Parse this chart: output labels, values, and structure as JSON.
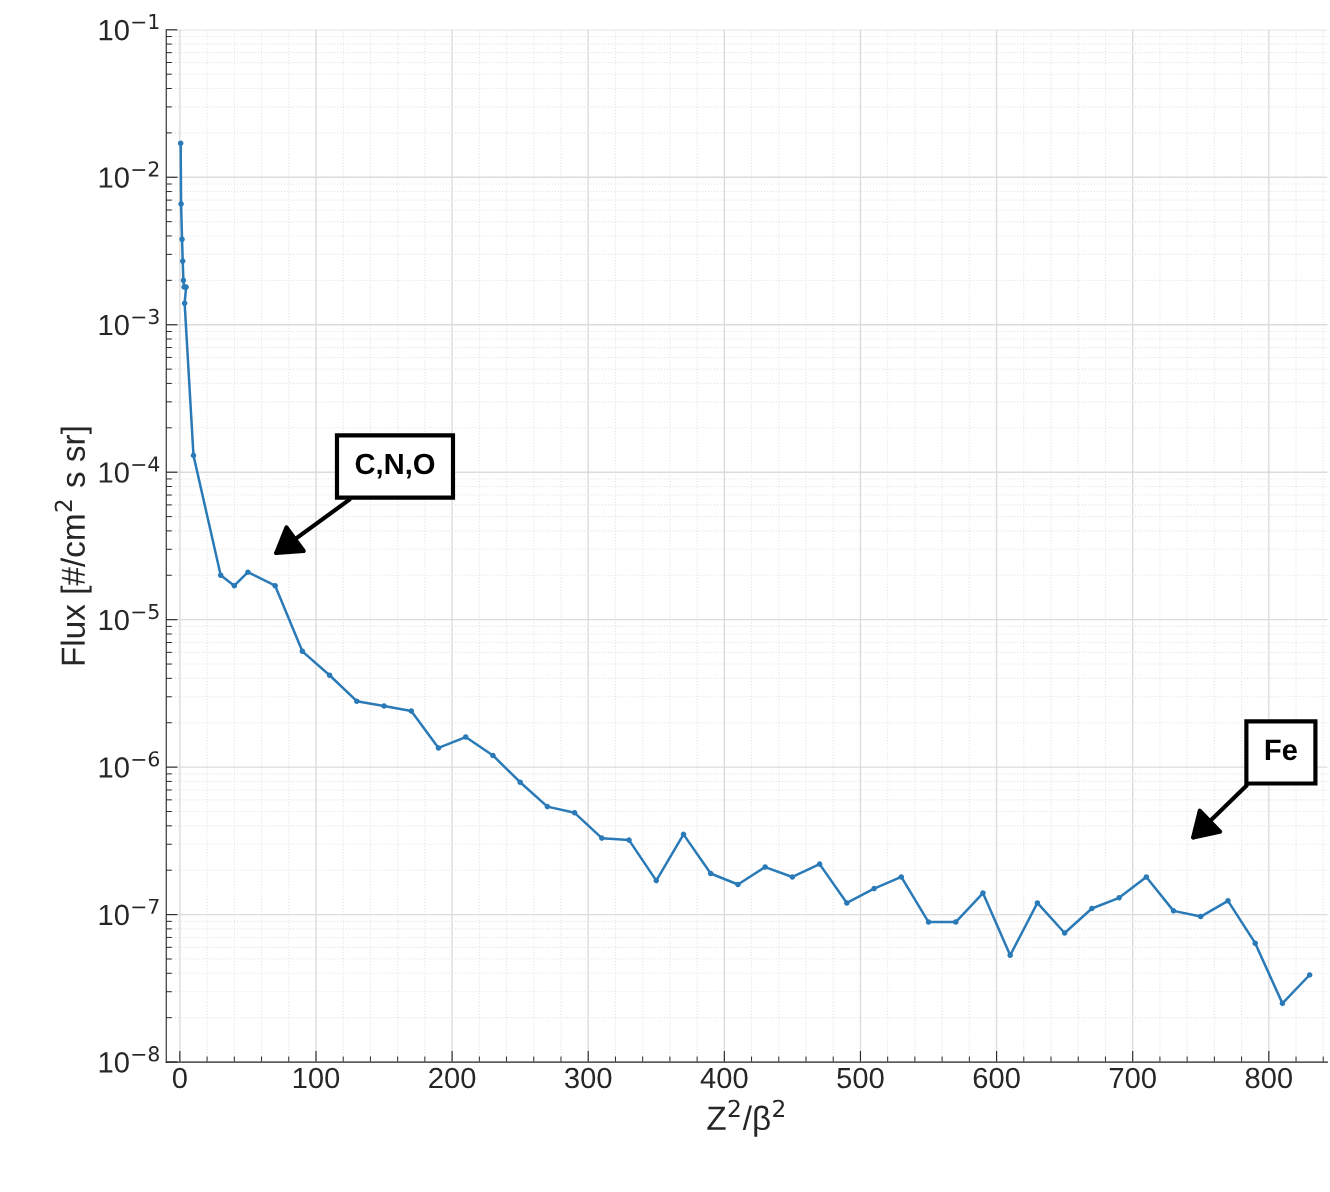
{
  "chart_data": {
    "type": "line",
    "xlabel": "Z$^{2}$/β$^{2}$",
    "ylabel": "Flux [#/cm$^{2}$ s sr]",
    "x": [
      0.6,
      0.9,
      1.6,
      2.1,
      2.6,
      3.1,
      4.6,
      3.5,
      10,
      30,
      40,
      50,
      70,
      90,
      110,
      130,
      150,
      170,
      190,
      210,
      230,
      250,
      270,
      290,
      310,
      330,
      350,
      370,
      390,
      410,
      430,
      450,
      470,
      490,
      510,
      530,
      550,
      570,
      590,
      610,
      630,
      650,
      670,
      690,
      710,
      730,
      750,
      770,
      790,
      810,
      830
    ],
    "series": [
      {
        "color": "#2a7ab8",
        "values": [
          0.017,
          0.0066,
          0.0038,
          0.0027,
          0.002,
          0.0018,
          0.0018,
          0.0014,
          0.00013,
          2e-05,
          1.7e-05,
          2.1e-05,
          1.7e-05,
          6.1e-06,
          4.2e-06,
          2.8e-06,
          2.6e-06,
          2.4e-06,
          1.35e-06,
          1.6e-06,
          1.2e-06,
          7.9e-07,
          5.4e-07,
          4.9e-07,
          3.3e-07,
          3.2e-07,
          1.7e-07,
          3.5e-07,
          1.9e-07,
          1.6e-07,
          2.1e-07,
          1.8e-07,
          2.2e-07,
          1.2e-07,
          1.5e-07,
          1.8e-07,
          8.9e-08,
          8.9e-08,
          1.4e-07,
          5.3e-08,
          1.2e-07,
          7.5e-08,
          1.1e-07,
          1.3e-07,
          1.8e-07,
          1.06e-07,
          9.7e-08,
          1.24e-07,
          6.4e-08,
          2.5e-08,
          3.9e-08
        ]
      }
    ],
    "log": "y",
    "xlim": [
      -10,
      843
    ],
    "xticks": [
      0,
      100,
      200,
      300,
      400,
      500,
      600,
      700,
      800
    ],
    "ylim": [
      1e-08,
      0.1
    ],
    "yticks": [
      {
        "value": 1e-08,
        "label": "10$^{−8}$"
      },
      {
        "value": 1e-07,
        "label": "10$^{−7}$"
      },
      {
        "value": 1e-06,
        "label": "10$^{−6}$"
      },
      {
        "value": 1e-05,
        "label": "10$^{−5}$"
      },
      {
        "value": 0.0001,
        "label": "10$^{−4}$"
      },
      {
        "value": 0.001,
        "label": "10$^{−3}$"
      },
      {
        "value": 0.01,
        "label": "10$^{−2}$"
      },
      {
        "value": 0.1,
        "label": "10$^{−1}$"
      }
    ],
    "grid": true,
    "marker": "circle",
    "line_style": "solid",
    "legend": false,
    "annotations": [
      "C,N,O",
      "Fe"
    ]
  }
}
